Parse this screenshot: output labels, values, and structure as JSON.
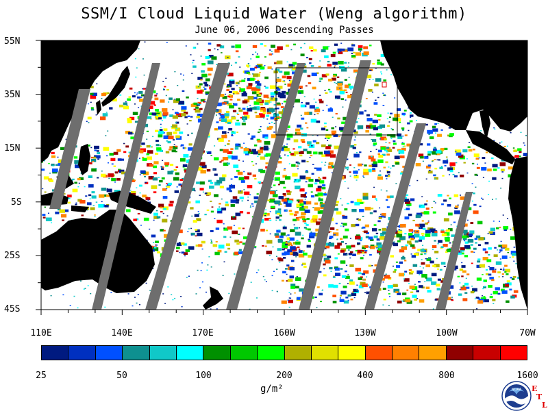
{
  "title": "SSM/I Cloud Liquid Water (Weng algorithm)",
  "subtitle": "June 06, 2006  Descending Passes",
  "lat_labels": [
    "55N",
    "35N",
    "15N",
    "5S",
    "25S",
    "45S"
  ],
  "lon_labels": [
    "110E",
    "140E",
    "170E",
    "160W",
    "130W",
    "100W",
    "70W"
  ],
  "colorbar": {
    "labels": [
      "25",
      "50",
      "100",
      "200",
      "400",
      "800",
      "1600"
    ],
    "units": "g/m²",
    "colors": [
      "#001a80",
      "#0030c0",
      "#0050ff",
      "#0e9090",
      "#10c8c8",
      "#00ffff",
      "#009000",
      "#00c800",
      "#00ff00",
      "#b0b000",
      "#e0e000",
      "#ffff00",
      "#ff5000",
      "#ff8000",
      "#ffa000",
      "#900000",
      "#c80000",
      "#ff0000"
    ]
  },
  "map_colors": {
    "land": "#000000",
    "swath_gap": "#6e6e6e",
    "clear_ocean": "#ffffff"
  },
  "logo": {
    "name": "noaa-logo",
    "text": "NOAA",
    "etl": [
      "E",
      "T",
      "L"
    ]
  }
}
